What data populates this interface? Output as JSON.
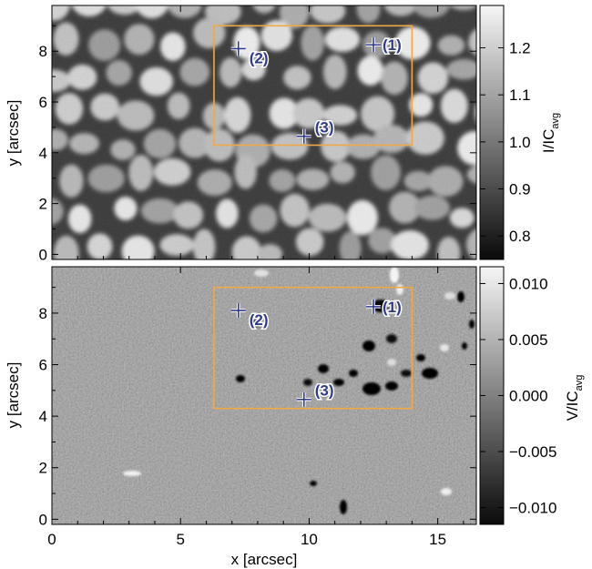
{
  "chart_data": [
    {
      "type": "heatmap",
      "panel": "intensity",
      "xlim": [
        0,
        16.5
      ],
      "ylim": [
        -0.2,
        9.8
      ],
      "yticks": [
        0,
        2,
        4,
        6,
        8
      ],
      "ylabel": "y [arcsec]",
      "colorbar": {
        "label": "I/IC",
        "label_sub": "avg",
        "range": [
          0.75,
          1.29
        ],
        "ticks": [
          1.2,
          1.1,
          1.0,
          0.9,
          0.8
        ],
        "tick_labels": [
          "1.2",
          "1.1",
          "1.0",
          "0.9",
          "0.8"
        ]
      },
      "box": {
        "x0": 6.3,
        "x1": 14.0,
        "y0": 4.3,
        "y1": 9.0,
        "color": "#f0a848"
      },
      "markers": [
        {
          "label": "(1)",
          "x": 12.5,
          "y": 8.25
        },
        {
          "label": "(2)",
          "x": 7.25,
          "y": 8.1
        },
        {
          "label": "(3)",
          "x": 9.8,
          "y": 4.65
        }
      ]
    },
    {
      "type": "heatmap",
      "panel": "circular-polarization",
      "xlim": [
        0,
        16.5
      ],
      "ylim": [
        -0.2,
        9.8
      ],
      "xticks": [
        0,
        5,
        10,
        15
      ],
      "yticks": [
        0,
        2,
        4,
        6,
        8
      ],
      "xlabel": "x [arcsec]",
      "ylabel": "y [arcsec]",
      "colorbar": {
        "label": "V/IC",
        "label_sub": "avg",
        "range": [
          -0.0115,
          0.0115
        ],
        "ticks": [
          0.01,
          0.005,
          0.0,
          -0.005,
          -0.01
        ],
        "tick_labels": [
          "0.010",
          "0.005",
          "0.000",
          "−0.005",
          "−0.010"
        ]
      },
      "box": {
        "x0": 6.3,
        "x1": 14.0,
        "y0": 4.3,
        "y1": 9.0,
        "color": "#f0a848"
      },
      "markers": [
        {
          "label": "(1)",
          "x": 12.5,
          "y": 8.25
        },
        {
          "label": "(2)",
          "x": 7.25,
          "y": 8.1
        },
        {
          "label": "(3)",
          "x": 9.8,
          "y": 4.65
        }
      ]
    }
  ]
}
